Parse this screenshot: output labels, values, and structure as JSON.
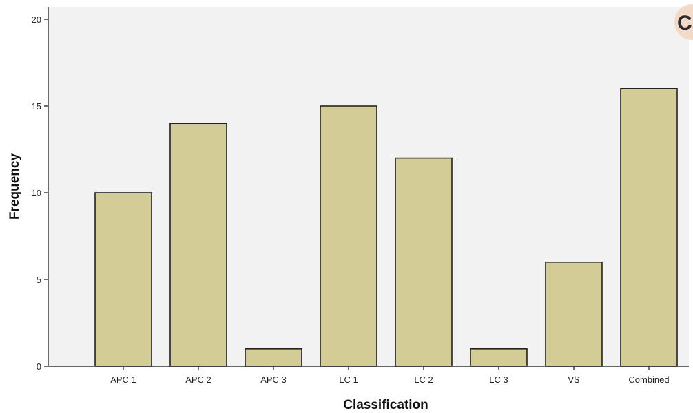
{
  "chart_data": {
    "type": "bar",
    "categories": [
      "APC 1",
      "APC 2",
      "APC 3",
      "LC 1",
      "LC 2",
      "LC 3",
      "VS",
      "Combined"
    ],
    "values": [
      10,
      14,
      1,
      15,
      12,
      1,
      6,
      16
    ],
    "title": "",
    "xlabel": "Classification",
    "ylabel": "Frequency",
    "ylim": [
      0,
      20
    ],
    "yticks": [
      0,
      5,
      10,
      15,
      20
    ],
    "grid": false,
    "legend": "none",
    "colors": {
      "bar_fill": "#d4cc97",
      "bar_stroke": "#222222",
      "plot_background": "#f2f2f2",
      "axis": "#333333"
    }
  },
  "panel_label": "C"
}
